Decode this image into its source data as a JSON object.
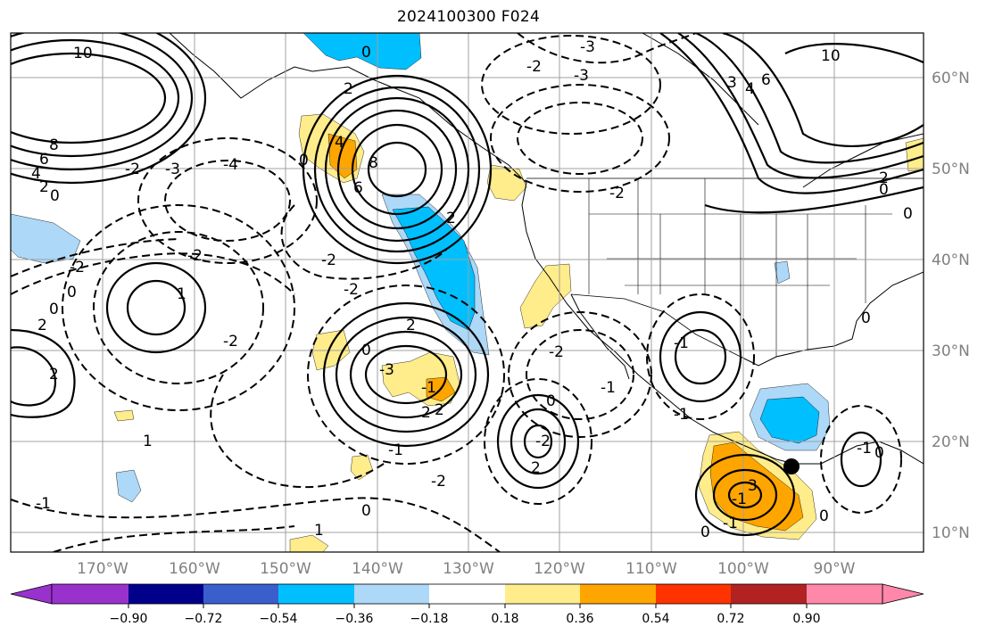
{
  "title": "2024100300 F024",
  "map": {
    "lon_labels": [
      "170°W",
      "160°W",
      "150°W",
      "140°W",
      "130°W",
      "120°W",
      "110°W",
      "100°W",
      "90°W"
    ],
    "lat_labels": [
      "60°N",
      "50°N",
      "40°N",
      "30°N",
      "20°N",
      "10°N"
    ],
    "contour_labels": [
      "10",
      "8",
      "6",
      "4",
      "2",
      "0",
      "-2",
      "-3",
      "-4",
      "0",
      "-2",
      "2",
      "0",
      "-3",
      "-3",
      "4",
      "8",
      "6",
      "2",
      "-2",
      "1",
      "-2",
      "2",
      "2",
      "-2",
      "0",
      "-2",
      "0",
      "-2",
      "-2",
      "2",
      "0",
      "-1",
      "-3",
      "2",
      "1",
      "-2",
      "-1",
      "2",
      "0",
      "1",
      "-2",
      "2",
      "-1",
      "0",
      "-2",
      "-1",
      "10",
      "6",
      "4",
      "3",
      "0",
      "2",
      "0",
      "0",
      "-1",
      "-1",
      "0",
      "-1",
      "3",
      "-1",
      "0",
      "-1",
      "0"
    ],
    "marker_icon": "location-dot-icon"
  },
  "colorbar": {
    "ticks": [
      "−0.90",
      "−0.72",
      "−0.54",
      "−0.36",
      "−0.18",
      "0.18",
      "0.36",
      "0.54",
      "0.72",
      "0.90"
    ],
    "colors": [
      "#9932cc",
      "#00008b",
      "#3a5fcd",
      "#00bfff",
      "#add8f7",
      "#ffffff",
      "#ffec8b",
      "#ffa500",
      "#ff3300",
      "#b22222",
      "#ff88aa"
    ]
  }
}
